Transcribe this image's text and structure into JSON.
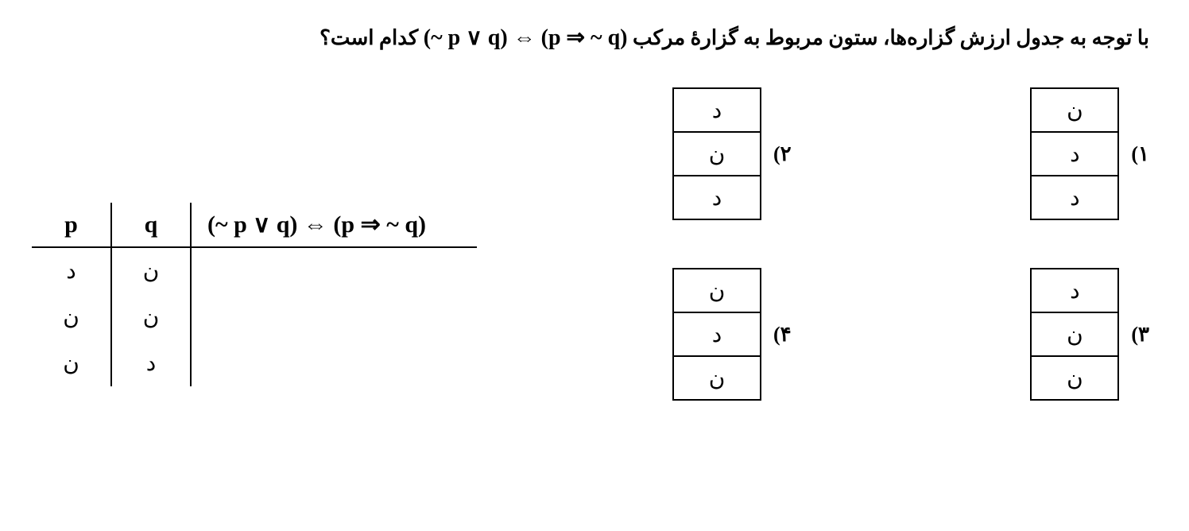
{
  "question": {
    "prefix": "با توجه به جدول ارزش گزاره‌ها، ستون مربوط به گزارهٔ مرکب ",
    "formula": "(~ p ∨ q) ⇔ (p ⇒ ~ q)",
    "suffix": " کدام است؟"
  },
  "options": {
    "1": {
      "number": "۱)",
      "cells": [
        "ن",
        "د",
        "د"
      ]
    },
    "2": {
      "number": "۲)",
      "cells": [
        "د",
        "ن",
        "د"
      ]
    },
    "3": {
      "number": "۳)",
      "cells": [
        "د",
        "ن",
        "ن"
      ]
    },
    "4": {
      "number": "۴)",
      "cells": [
        "ن",
        "د",
        "ن"
      ]
    }
  },
  "main_table": {
    "headers": {
      "p": "p",
      "q": "q",
      "formula": "(~ p ∨ q) ⇔ (p ⇒ ~ q)"
    },
    "rows": [
      {
        "p": "د",
        "q": "ن"
      },
      {
        "p": "ن",
        "q": "ن"
      },
      {
        "p": "ن",
        "q": "د"
      }
    ]
  }
}
